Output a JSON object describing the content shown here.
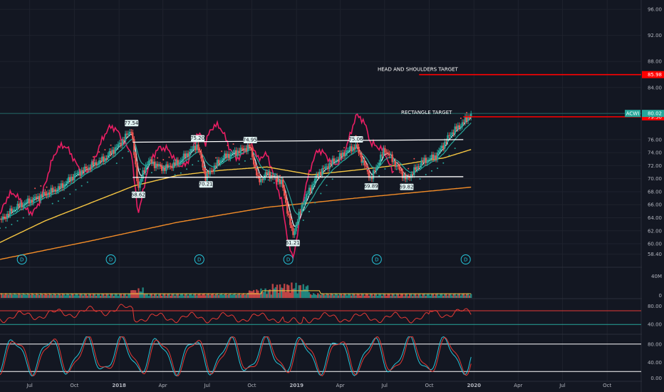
{
  "chart_data": {
    "type": "line",
    "symbol": "ACWI",
    "colors": {
      "background": "#131722",
      "grid": "#1e222d",
      "price_up": "#26a69a",
      "price_down": "#ef5350",
      "ema_fast": "#e0f7fa",
      "ema_slow": "#26a69a",
      "ma_50": "#f5c542",
      "ma_200": "#f28c28",
      "relative_strength": "#e91e63",
      "target_line": "#ff0000",
      "resistance_line": "#ffffff",
      "indicator_line": "#e53935"
    },
    "price_axis": {
      "ticks": [
        "96.00",
        "92.00",
        "88.00",
        "84.00",
        "80.00",
        "76.00",
        "74.00",
        "72.00",
        "70.00",
        "68.00",
        "66.00",
        "64.00",
        "62.00",
        "60.00",
        "58.40"
      ],
      "ylim": [
        56.5,
        97
      ]
    },
    "time_axis": {
      "ticks": [
        "Jul",
        "Oct",
        "2018",
        "Apr",
        "Jul",
        "Oct",
        "2019",
        "Apr",
        "Jul",
        "Oct",
        "2020",
        "Apr",
        "Jul",
        "Oct"
      ],
      "xlim": [
        "2017-05-01",
        "2020-12-10"
      ]
    },
    "last_price": {
      "label": "ACWI",
      "value": "80.02"
    },
    "price_labels": [
      {
        "date": "2018-01-26",
        "value": "77.54"
      },
      {
        "date": "2018-02-09",
        "value": "68.62"
      },
      {
        "date": "2018-06-11",
        "value": "75.20"
      },
      {
        "date": "2018-06-28",
        "value": "70.21"
      },
      {
        "date": "2018-09-27",
        "value": "74.95"
      },
      {
        "date": "2018-12-24",
        "value": "61.21"
      },
      {
        "date": "2019-05-03",
        "value": "75.06"
      },
      {
        "date": "2019-06-03",
        "value": "69.89"
      },
      {
        "date": "2019-08-15",
        "value": "69.82"
      }
    ],
    "annotations": [
      {
        "text": "HEAD AND SHOULDERS TARGET",
        "value": "85.98",
        "level": 85.98
      },
      {
        "text": "RECTANGLE TARGET",
        "value": "79.50",
        "level": 79.5
      }
    ],
    "rectangle": {
      "top": 75.6,
      "bottom": 70.2,
      "start": "2018-01-29",
      "end": "2019-12-10"
    },
    "dividend_markers": [
      "2017-06-15",
      "2017-12-15",
      "2018-06-15",
      "2018-12-15",
      "2019-06-15",
      "2019-12-15"
    ],
    "dividend_label": "D",
    "series": [
      {
        "x": [
          "2017-05-01",
          "2017-06-01",
          "2017-07-01",
          "2017-08-01",
          "2017-09-01",
          "2017-10-01",
          "2017-11-01",
          "2017-12-01",
          "2018-01-01",
          "2018-01-26",
          "2018-02-09",
          "2018-03-01",
          "2018-04-01",
          "2018-05-01",
          "2018-06-11",
          "2018-06-28",
          "2018-08-01",
          "2018-09-27",
          "2018-10-15",
          "2018-11-01",
          "2018-12-01",
          "2018-12-24",
          "2019-01-15",
          "2019-02-15",
          "2019-03-15",
          "2019-04-15",
          "2019-05-03",
          "2019-06-03",
          "2019-07-01",
          "2019-08-15",
          "2019-09-15",
          "2019-10-15",
          "2019-11-15",
          "2019-12-10",
          "2019-12-27"
        ],
        "values": [
          63.5,
          65.5,
          66.6,
          67.6,
          68.6,
          70.5,
          71.8,
          73.0,
          75.2,
          77.54,
          68.62,
          72.8,
          71.5,
          72.4,
          75.2,
          70.21,
          73.2,
          74.95,
          69.5,
          70.8,
          69.5,
          61.21,
          66.5,
          70.8,
          72.5,
          74.2,
          75.06,
          69.89,
          74.6,
          69.82,
          72.5,
          73.5,
          77.0,
          78.6,
          80.02
        ]
      },
      {
        "x": [
          "2017-05-01",
          "2017-08-01",
          "2017-11-01",
          "2018-02-01",
          "2018-05-01",
          "2018-08-01",
          "2018-11-01",
          "2019-02-01",
          "2019-05-01",
          "2019-08-01",
          "2019-11-01",
          "2019-12-27"
        ],
        "values": [
          60.2,
          63.5,
          66.2,
          68.9,
          70.5,
          71.3,
          71.8,
          70.6,
          71.3,
          72.1,
          73.2,
          74.5
        ]
      },
      {
        "x": [
          "2017-05-01",
          "2017-11-01",
          "2018-05-01",
          "2018-11-01",
          "2019-05-01",
          "2019-12-27"
        ],
        "values": [
          57.6,
          60.4,
          63.3,
          65.6,
          67.0,
          68.7
        ]
      }
    ],
    "volume": {
      "axis": [
        "40M",
        "0"
      ],
      "ylim": [
        0,
        50
      ]
    },
    "rsi": {
      "axis": [
        "80.00",
        "40.00"
      ],
      "levels": [
        70,
        40
      ],
      "ylim": [
        20,
        95
      ]
    },
    "stochastic": {
      "axis": [
        "80.00",
        "40.00",
        "0.00"
      ],
      "levels": [
        80,
        20
      ],
      "ylim": [
        0,
        100
      ]
    }
  }
}
